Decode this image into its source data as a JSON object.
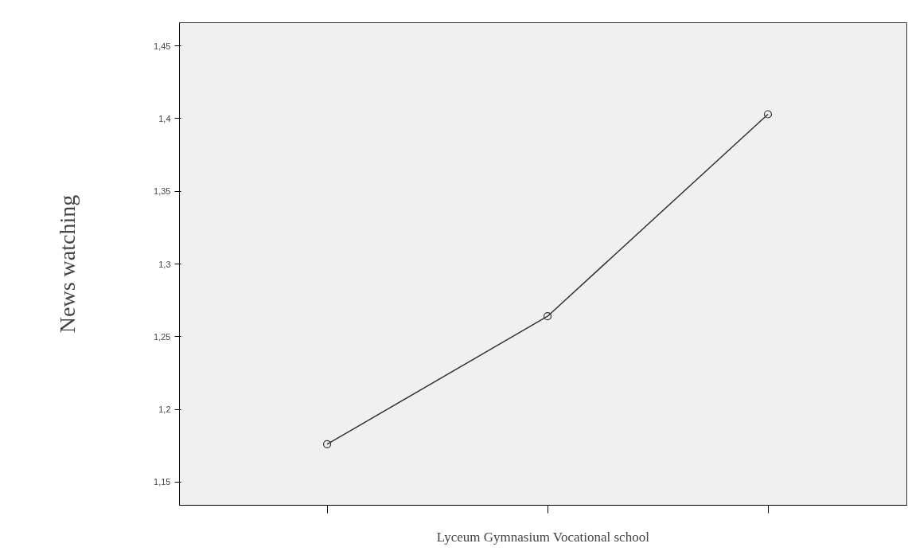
{
  "chart_data": {
    "type": "line",
    "xlabel": "Lyceum Gymnasium Vocational school",
    "ylabel": "News watching",
    "categories": [
      null,
      null,
      null
    ],
    "series": [
      {
        "color": "#333333",
        "values": [
          1.176,
          1.264,
          1.403
        ]
      }
    ],
    "marker": "circle",
    "line_style": "solid",
    "grid": false,
    "ylim": [
      1.134,
      1.466
    ],
    "yticks": [
      {
        "value": 1.15,
        "label": "1,15"
      },
      {
        "value": 1.2,
        "label": "1,2"
      },
      {
        "value": 1.25,
        "label": "1,25"
      },
      {
        "value": 1.3,
        "label": "1,3"
      },
      {
        "value": 1.35,
        "label": "1,35"
      },
      {
        "value": 1.4,
        "label": "1,4"
      },
      {
        "value": 1.45,
        "label": "1,45"
      }
    ]
  }
}
